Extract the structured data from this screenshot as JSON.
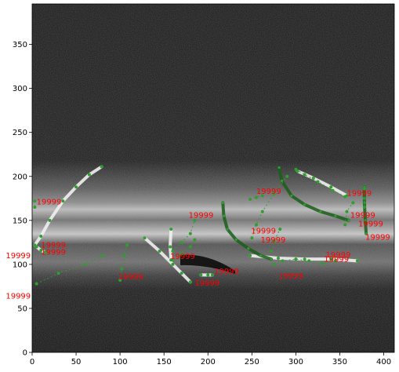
{
  "chart_data": {
    "type": "scatter",
    "title": "",
    "xlabel": "",
    "ylabel": "",
    "xlim": [
      0,
      412
    ],
    "ylim": [
      0,
      396
    ],
    "grid": false,
    "legend": "none",
    "background": "grayscale OCT-like retinal scan image",
    "xticks": [
      "0",
      "50",
      "100",
      "150",
      "200",
      "250",
      "300",
      "350",
      "400"
    ],
    "yticks": [
      "0",
      "50",
      "100",
      "150",
      "200",
      "250",
      "300",
      "350"
    ],
    "xtick_values": [
      0,
      50,
      100,
      150,
      200,
      250,
      300,
      350,
      400
    ],
    "ytick_values": [
      0,
      50,
      100,
      150,
      200,
      250,
      300,
      350
    ],
    "colors": {
      "annotation_text": "#ff0000",
      "marker_green": "#2e9e2e",
      "dark_marker_green": "#1a5e1a",
      "track_white": "#f0f0f0"
    },
    "series": [
      {
        "style": "white",
        "points": [
          [
            3,
            122
          ],
          [
            10,
            132
          ],
          [
            20,
            150
          ],
          [
            35,
            172
          ],
          [
            50,
            188
          ],
          [
            65,
            202
          ],
          [
            79,
            211
          ]
        ]
      },
      {
        "style": "white",
        "points": [
          [
            5,
            120
          ],
          [
            10,
            116
          ],
          [
            15,
            114
          ]
        ]
      },
      {
        "style": "white",
        "points": [
          [
            302,
            206
          ],
          [
            320,
            198
          ],
          [
            340,
            188
          ],
          [
            358,
            178
          ]
        ]
      },
      {
        "style": "white",
        "points": [
          [
            128,
            130
          ],
          [
            145,
            115
          ],
          [
            160,
            100
          ],
          [
            170,
            90
          ],
          [
            180,
            80
          ]
        ]
      },
      {
        "style": "white",
        "points": [
          [
            158,
            140
          ],
          [
            157,
            120
          ],
          [
            158,
            105
          ]
        ]
      },
      {
        "style": "white",
        "points": [
          [
            192,
            88
          ],
          [
            200,
            88
          ],
          [
            205,
            88
          ]
        ]
      },
      {
        "style": "white",
        "points": [
          [
            248,
            110
          ],
          [
            280,
            107
          ],
          [
            310,
            106
          ],
          [
            340,
            106
          ],
          [
            370,
            104
          ]
        ]
      },
      {
        "style": "dark",
        "points": [
          [
            217,
            170
          ],
          [
            218,
            155
          ],
          [
            222,
            140
          ],
          [
            232,
            128
          ],
          [
            246,
            118
          ],
          [
            260,
            110
          ],
          [
            272,
            106
          ]
        ]
      },
      {
        "style": "dark",
        "points": [
          [
            281,
            210
          ],
          [
            284,
            195
          ],
          [
            295,
            178
          ],
          [
            310,
            168
          ],
          [
            328,
            160
          ],
          [
            345,
            155
          ],
          [
            360,
            150
          ]
        ]
      },
      {
        "style": "dark",
        "points": [
          [
            378,
            188
          ],
          [
            378,
            170
          ],
          [
            379,
            150
          ],
          [
            380,
            135
          ]
        ]
      },
      {
        "style": "green",
        "points": [
          [
            3,
            172
          ],
          [
            3,
            165
          ]
        ]
      },
      {
        "style": "green",
        "points": [
          [
            5,
            78
          ],
          [
            30,
            90
          ],
          [
            60,
            100
          ],
          [
            80,
            110
          ]
        ]
      },
      {
        "style": "green",
        "points": [
          [
            100,
            82
          ],
          [
            102,
            95
          ],
          [
            105,
            110
          ],
          [
            108,
            122
          ]
        ]
      },
      {
        "style": "green",
        "points": [
          [
            160,
            115
          ],
          [
            170,
            125
          ],
          [
            180,
            135
          ],
          [
            185,
            150
          ]
        ]
      },
      {
        "style": "green",
        "points": [
          [
            160,
            105
          ],
          [
            170,
            112
          ],
          [
            180,
            120
          ],
          [
            185,
            128
          ]
        ]
      },
      {
        "style": "green",
        "points": [
          [
            250,
            130
          ],
          [
            255,
            145
          ],
          [
            262,
            160
          ],
          [
            275,
            180
          ],
          [
            290,
            200
          ]
        ]
      },
      {
        "style": "green",
        "points": [
          [
            272,
            115
          ],
          [
            275,
            126
          ],
          [
            282,
            140
          ]
        ]
      },
      {
        "style": "green",
        "points": [
          [
            275,
            100
          ],
          [
            285,
            104
          ],
          [
            300,
            106
          ],
          [
            315,
            104
          ],
          [
            330,
            101
          ],
          [
            345,
            104
          ]
        ]
      },
      {
        "style": "green",
        "points": [
          [
            248,
            174
          ],
          [
            255,
            176
          ],
          [
            262,
            178
          ]
        ]
      },
      {
        "style": "green",
        "points": [
          [
            356,
            145
          ],
          [
            358,
            160
          ],
          [
            365,
            170
          ]
        ]
      },
      {
        "style": "green",
        "points": [
          [
            378,
            186
          ],
          [
            378,
            175
          ],
          [
            378,
            165
          ]
        ]
      },
      {
        "style": "green",
        "points": [
          [
            300,
            208
          ],
          [
            310,
            202
          ],
          [
            325,
            194
          ],
          [
            342,
            184
          ],
          [
            356,
            177
          ]
        ]
      }
    ],
    "annotations": [
      {
        "text": "19999",
        "x": 5,
        "y": 168
      },
      {
        "text": "19999",
        "x": 10,
        "y": 119
      },
      {
        "text": "19999",
        "x": 10,
        "y": 111
      },
      {
        "text": "19999",
        "x": -30,
        "y": 107
      },
      {
        "text": "19999",
        "x": -30,
        "y": 61
      },
      {
        "text": "19999",
        "x": 98,
        "y": 83
      },
      {
        "text": "19999",
        "x": 178,
        "y": 153
      },
      {
        "text": "19999",
        "x": 157,
        "y": 106
      },
      {
        "text": "19999",
        "x": 185,
        "y": 76
      },
      {
        "text": "19999",
        "x": 207,
        "y": 89
      },
      {
        "text": "19999",
        "x": 255,
        "y": 180
      },
      {
        "text": "19999",
        "x": 249,
        "y": 135
      },
      {
        "text": "19999",
        "x": 260,
        "y": 125
      },
      {
        "text": "19999",
        "x": 280,
        "y": 84
      },
      {
        "text": "19999",
        "x": 334,
        "y": 108
      },
      {
        "text": "19999",
        "x": 332,
        "y": 103
      },
      {
        "text": "19999",
        "x": 358,
        "y": 178
      },
      {
        "text": "19999",
        "x": 362,
        "y": 153
      },
      {
        "text": "19999",
        "x": 371,
        "y": 143
      },
      {
        "text": "19999",
        "x": 379,
        "y": 128
      }
    ]
  }
}
